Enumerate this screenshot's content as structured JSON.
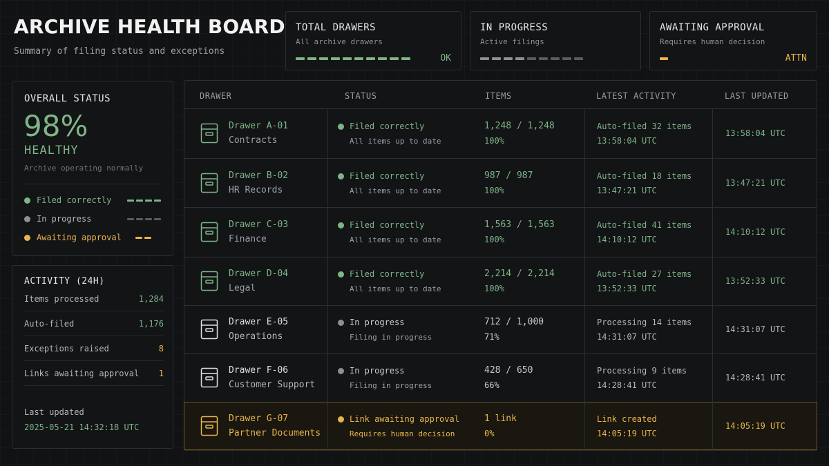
{
  "header": {
    "title": "ARCHIVE HEALTH BOARD",
    "subtitle": "Summary of filing status and exceptions"
  },
  "kpis": [
    {
      "label": "TOTAL DRAWERS",
      "sub": "All archive drawers",
      "status": "OK",
      "color": "#7fb487"
    },
    {
      "label": "IN PROGRESS",
      "sub": "Active filings",
      "status": "",
      "color": "#8c9196"
    },
    {
      "label": "AWAITING APPROVAL",
      "sub": "Requires human decision",
      "status": "ATTN",
      "color": "#e9b44c"
    }
  ],
  "overall": {
    "label": "OVERALL STATUS",
    "percent": "98%",
    "health": "HEALTHY",
    "note": "Archive operating normally",
    "legend": [
      {
        "label": "Filed correctly",
        "color": "#7fb487"
      },
      {
        "label": "In progress",
        "color": "#8c9196"
      },
      {
        "label": "Awaiting approval",
        "color": "#e9b44c"
      }
    ]
  },
  "activity": {
    "label": "ACTIVITY (24H)",
    "rows": [
      {
        "name": "Items processed",
        "value": "1,284",
        "color": "#7fb487"
      },
      {
        "name": "Auto-filed",
        "value": "1,176",
        "color": "#7fb487"
      },
      {
        "name": "Exceptions raised",
        "value": "8",
        "color": "#e9b44c"
      },
      {
        "name": "Links awaiting approval",
        "value": "1",
        "color": "#e9b44c"
      }
    ],
    "footer_label": "Last updated",
    "footer_value": "2025-05-21 14:32:18 UTC"
  },
  "table": {
    "headers": [
      "DRAWER",
      "STATUS",
      "ITEMS",
      "LATEST ACTIVITY",
      "LAST UPDATED"
    ],
    "rows": [
      {
        "drawer": "Drawer A-01",
        "dept": "Contracts",
        "status": "Filed correctly",
        "status_sub": "All items up to date",
        "items": "1,248 / 1,248",
        "pct": "100%",
        "activity": "Auto-filed 32 items",
        "activity_time": "13:58:04 UTC",
        "updated": "13:58:04 UTC",
        "state": "ok"
      },
      {
        "drawer": "Drawer B-02",
        "dept": "HR Records",
        "status": "Filed correctly",
        "status_sub": "All items up to date",
        "items": "987 / 987",
        "pct": "100%",
        "activity": "Auto-filed 18 items",
        "activity_time": "13:47:21 UTC",
        "updated": "13:47:21 UTC",
        "state": "ok"
      },
      {
        "drawer": "Drawer C-03",
        "dept": "Finance",
        "status": "Filed correctly",
        "status_sub": "All items up to date",
        "items": "1,563 / 1,563",
        "pct": "100%",
        "activity": "Auto-filed 41 items",
        "activity_time": "14:10:12 UTC",
        "updated": "14:10:12 UTC",
        "state": "ok"
      },
      {
        "drawer": "Drawer D-04",
        "dept": "Legal",
        "status": "Filed correctly",
        "status_sub": "All items up to date",
        "items": "2,214 / 2,214",
        "pct": "100%",
        "activity": "Auto-filed 27 items",
        "activity_time": "13:52:33 UTC",
        "updated": "13:52:33 UTC",
        "state": "ok"
      },
      {
        "drawer": "Drawer E-05",
        "dept": "Operations",
        "status": "In progress",
        "status_sub": "Filing in progress",
        "items": "712 / 1,000",
        "pct": "71%",
        "activity": "Processing 14 items",
        "activity_time": "14:31:07 UTC",
        "updated": "14:31:07 UTC",
        "state": "prog"
      },
      {
        "drawer": "Drawer F-06",
        "dept": "Customer Support",
        "status": "In progress",
        "status_sub": "Filing in progress",
        "items": "428 / 650",
        "pct": "66%",
        "activity": "Processing 9 items",
        "activity_time": "14:28:41 UTC",
        "updated": "14:28:41 UTC",
        "state": "prog"
      },
      {
        "drawer": "Drawer G-07",
        "dept": "Partner Documents",
        "status": "Link awaiting approval",
        "status_sub": "Requires human decision",
        "items": "1 link",
        "pct": "0%",
        "activity": "Link created",
        "activity_time": "14:05:19 UTC",
        "updated": "14:05:19 UTC",
        "state": "attn"
      }
    ]
  },
  "colors": {
    "ok": "#7fb487",
    "progress": "#8c9196",
    "attn": "#e9b44c"
  }
}
